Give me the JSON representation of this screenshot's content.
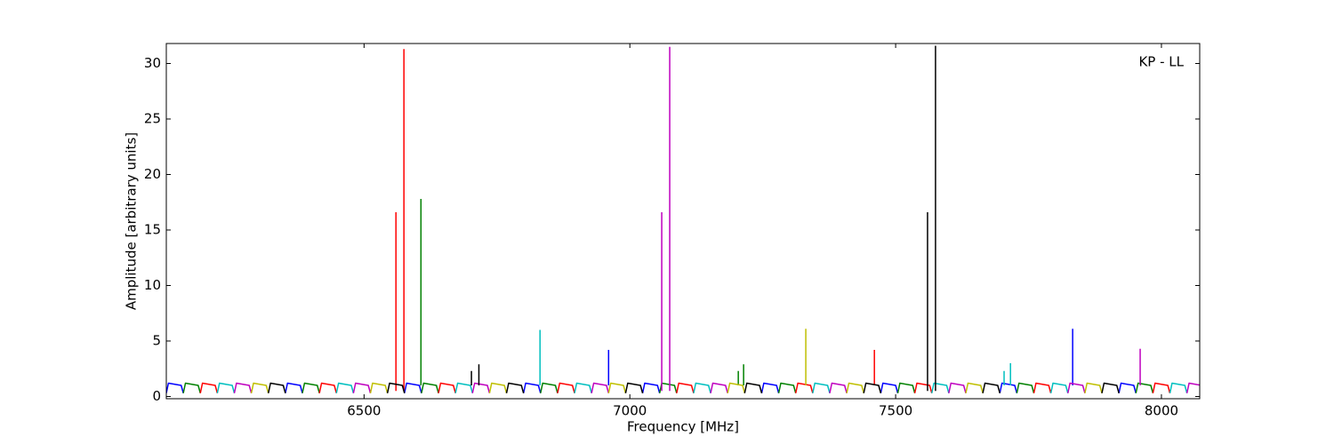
{
  "chart_data": {
    "type": "line",
    "annotation": "KP - LL",
    "x_label": "Frequency [MHz]",
    "y_label": "Amplitude [arbitrary units]",
    "xlim": [
      6128,
      8072
    ],
    "ylim": [
      -0.2,
      31.8
    ],
    "xticks": [
      6500,
      7000,
      7500,
      8000
    ],
    "yticks": [
      0,
      5,
      10,
      15,
      20,
      25,
      30
    ],
    "series": [
      {
        "color": "#0000ff",
        "x": [
          6128,
          6132,
          6156,
          6160,
          null,
          6352,
          6356,
          6380,
          6384,
          null,
          6576,
          6580,
          6604,
          6608,
          null,
          6800,
          6804,
          6828,
          6832,
          null,
          7024,
          7028,
          7052,
          7056,
          null,
          7248,
          7252,
          7276,
          7280,
          null,
          7472,
          7476,
          7500,
          7504,
          null,
          7696,
          7700,
          7724,
          7728,
          null,
          7920,
          7924,
          7948,
          7952,
          null,
          6960,
          6960,
          null,
          7833,
          7833
        ],
        "values": [
          0.3,
          1.2,
          1.0,
          0.3,
          null,
          0.3,
          1.2,
          1.0,
          0.3,
          null,
          0.3,
          1.2,
          1.0,
          0.3,
          null,
          0.3,
          1.2,
          1.0,
          0.3,
          null,
          0.3,
          1.2,
          1.0,
          0.3,
          null,
          0.3,
          1.2,
          1.0,
          0.3,
          null,
          0.3,
          1.2,
          1.0,
          0.3,
          null,
          0.3,
          1.2,
          1.0,
          0.3,
          null,
          0.3,
          1.2,
          1.0,
          0.3,
          null,
          1.0,
          4.2,
          null,
          1.0,
          6.1
        ]
      },
      {
        "color": "#008000",
        "x": [
          6160,
          6164,
          6188,
          6192,
          null,
          6384,
          6388,
          6412,
          6416,
          null,
          6608,
          6612,
          6636,
          6640,
          null,
          6832,
          6836,
          6860,
          6864,
          null,
          7056,
          7060,
          7084,
          7088,
          null,
          7280,
          7284,
          7308,
          7312,
          null,
          7504,
          7508,
          7532,
          7536,
          null,
          7728,
          7732,
          7756,
          7760,
          null,
          7952,
          7956,
          7980,
          7984,
          null,
          6607,
          6607,
          null,
          7204,
          7204,
          null,
          7214,
          7214
        ],
        "values": [
          0.3,
          1.2,
          1.0,
          0.3,
          null,
          0.3,
          1.2,
          1.0,
          0.3,
          null,
          0.3,
          1.2,
          1.0,
          0.3,
          null,
          0.3,
          1.2,
          1.0,
          0.3,
          null,
          0.3,
          1.2,
          1.0,
          0.3,
          null,
          0.3,
          1.2,
          1.0,
          0.3,
          null,
          0.3,
          1.2,
          1.0,
          0.3,
          null,
          0.3,
          1.2,
          1.0,
          0.3,
          null,
          0.3,
          1.2,
          1.0,
          0.3,
          null,
          1.0,
          17.8,
          null,
          1.0,
          2.3,
          null,
          1.0,
          2.9
        ]
      },
      {
        "color": "#ff0000",
        "x": [
          6192,
          6196,
          6220,
          6224,
          null,
          6416,
          6420,
          6444,
          6448,
          null,
          6640,
          6644,
          6668,
          6672,
          null,
          6864,
          6868,
          6892,
          6896,
          null,
          7088,
          7092,
          7116,
          7120,
          null,
          7312,
          7316,
          7340,
          7344,
          null,
          7536,
          7540,
          7564,
          7568,
          null,
          7760,
          7764,
          7788,
          7792,
          null,
          7984,
          7988,
          8012,
          8016,
          null,
          6560,
          6560,
          null,
          6575,
          6575,
          null,
          7460,
          7460
        ],
        "values": [
          0.3,
          1.2,
          1.0,
          0.3,
          null,
          0.3,
          1.2,
          1.0,
          0.3,
          null,
          0.3,
          1.2,
          1.0,
          0.3,
          null,
          0.3,
          1.2,
          1.0,
          0.3,
          null,
          0.3,
          1.2,
          1.0,
          0.3,
          null,
          0.3,
          1.2,
          1.0,
          0.3,
          null,
          0.3,
          1.2,
          1.0,
          0.3,
          null,
          0.3,
          1.2,
          1.0,
          0.3,
          null,
          0.3,
          1.2,
          1.0,
          0.3,
          null,
          0.5,
          16.6,
          null,
          0.5,
          31.3,
          null,
          1.0,
          4.2
        ]
      },
      {
        "color": "#00bfbf",
        "x": [
          6224,
          6228,
          6252,
          6256,
          null,
          6448,
          6452,
          6476,
          6480,
          null,
          6672,
          6676,
          6700,
          6704,
          null,
          6896,
          6900,
          6924,
          6928,
          null,
          7120,
          7124,
          7148,
          7152,
          null,
          7344,
          7348,
          7372,
          7376,
          null,
          7568,
          7572,
          7596,
          7600,
          null,
          7792,
          7796,
          7820,
          7824,
          null,
          8016,
          8020,
          8044,
          8048,
          null,
          6831,
          6831,
          null,
          7704,
          7704,
          null,
          7716,
          7716
        ],
        "values": [
          0.3,
          1.2,
          1.0,
          0.3,
          null,
          0.3,
          1.2,
          1.0,
          0.3,
          null,
          0.3,
          1.2,
          1.0,
          0.3,
          null,
          0.3,
          1.2,
          1.0,
          0.3,
          null,
          0.3,
          1.2,
          1.0,
          0.3,
          null,
          0.3,
          1.2,
          1.0,
          0.3,
          null,
          0.3,
          1.2,
          1.0,
          0.3,
          null,
          0.3,
          1.2,
          1.0,
          0.3,
          null,
          0.3,
          1.2,
          1.0,
          0.3,
          null,
          1.0,
          6.0,
          null,
          1.0,
          2.3,
          null,
          1.0,
          3.0
        ]
      },
      {
        "color": "#bf00bf",
        "x": [
          6256,
          6260,
          6284,
          6288,
          null,
          6480,
          6484,
          6508,
          6512,
          null,
          6704,
          6708,
          6732,
          6736,
          null,
          6928,
          6932,
          6956,
          6960,
          null,
          7152,
          7156,
          7180,
          7184,
          null,
          7376,
          7380,
          7404,
          7408,
          null,
          7600,
          7604,
          7628,
          7632,
          null,
          7824,
          7828,
          7852,
          7856,
          null,
          8048,
          8052,
          8076,
          8080,
          null,
          7060,
          7060,
          null,
          7075,
          7075,
          null,
          7960,
          7960
        ],
        "values": [
          0.3,
          1.2,
          1.0,
          0.3,
          null,
          0.3,
          1.2,
          1.0,
          0.3,
          null,
          0.3,
          1.2,
          1.0,
          0.3,
          null,
          0.3,
          1.2,
          1.0,
          0.3,
          null,
          0.3,
          1.2,
          1.0,
          0.3,
          null,
          0.3,
          1.2,
          1.0,
          0.3,
          null,
          0.3,
          1.2,
          1.0,
          0.3,
          null,
          0.3,
          1.2,
          1.0,
          0.3,
          null,
          0.3,
          1.2,
          1.0,
          0.3,
          null,
          0.5,
          16.6,
          null,
          0.5,
          31.5,
          null,
          1.0,
          4.3
        ]
      },
      {
        "color": "#bfbf00",
        "x": [
          6288,
          6292,
          6316,
          6320,
          null,
          6512,
          6516,
          6540,
          6544,
          null,
          6736,
          6740,
          6764,
          6768,
          null,
          6960,
          6964,
          6988,
          6992,
          null,
          7184,
          7188,
          7212,
          7216,
          null,
          7408,
          7412,
          7436,
          7440,
          null,
          7632,
          7636,
          7660,
          7664,
          null,
          7856,
          7860,
          7884,
          7888,
          null,
          7331,
          7331
        ],
        "values": [
          0.3,
          1.2,
          1.0,
          0.3,
          null,
          0.3,
          1.2,
          1.0,
          0.3,
          null,
          0.3,
          1.2,
          1.0,
          0.3,
          null,
          0.3,
          1.2,
          1.0,
          0.3,
          null,
          0.3,
          1.2,
          1.0,
          0.3,
          null,
          0.3,
          1.2,
          1.0,
          0.3,
          null,
          0.3,
          1.2,
          1.0,
          0.3,
          null,
          0.3,
          1.2,
          1.0,
          0.3,
          null,
          1.0,
          6.1
        ]
      },
      {
        "color": "#000000",
        "x": [
          6320,
          6324,
          6348,
          6352,
          null,
          6544,
          6548,
          6572,
          6576,
          null,
          6768,
          6772,
          6796,
          6800,
          null,
          6992,
          6996,
          7020,
          7024,
          null,
          7216,
          7220,
          7244,
          7248,
          null,
          7440,
          7444,
          7468,
          7472,
          null,
          7664,
          7668,
          7692,
          7696,
          null,
          7888,
          7892,
          7916,
          7920,
          null,
          6702,
          6702,
          null,
          6716,
          6716,
          null,
          7560,
          7560,
          null,
          7575,
          7575
        ],
        "values": [
          0.3,
          1.2,
          1.0,
          0.3,
          null,
          0.3,
          1.2,
          1.0,
          0.3,
          null,
          0.3,
          1.2,
          1.0,
          0.3,
          null,
          0.3,
          1.2,
          1.0,
          0.3,
          null,
          0.3,
          1.2,
          1.0,
          0.3,
          null,
          0.3,
          1.2,
          1.0,
          0.3,
          null,
          0.3,
          1.2,
          1.0,
          0.3,
          null,
          0.3,
          1.2,
          1.0,
          0.3,
          null,
          1.0,
          2.3,
          null,
          1.0,
          2.9,
          null,
          0.5,
          16.6,
          null,
          0.5,
          31.6
        ]
      }
    ]
  }
}
